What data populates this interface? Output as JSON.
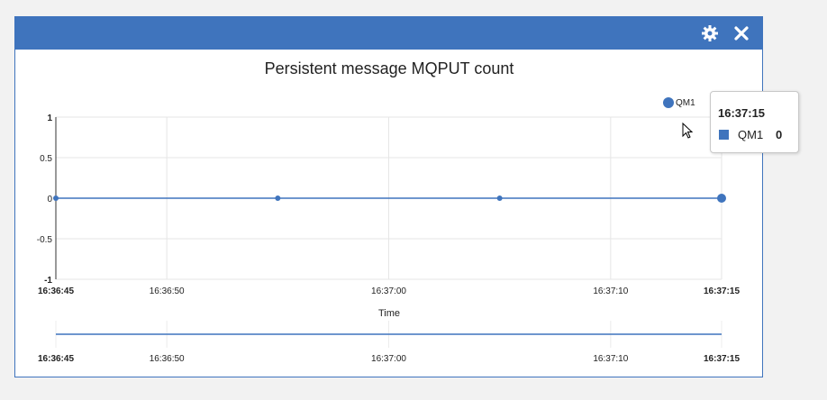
{
  "widget": {
    "settings_icon": "gear-icon",
    "close_icon": "close-icon",
    "accent_color": "#3f74bd"
  },
  "chart_data": {
    "type": "line",
    "title": "Persistent message MQPUT count",
    "xlabel": "Time",
    "ylabel": "",
    "x": [
      "16:36:45",
      "16:36:55",
      "16:37:05",
      "16:37:15"
    ],
    "series": [
      {
        "name": "QM1",
        "values": [
          0,
          0,
          0,
          0
        ],
        "color": "#3f74bd"
      }
    ],
    "ylim": [
      -1,
      1
    ],
    "y_ticks": [
      "1",
      "0.5",
      "0",
      "-0.5",
      "-1"
    ],
    "x_ticks": [
      "16:36:45",
      "16:36:50",
      "16:37:00",
      "16:37:10",
      "16:37:15"
    ],
    "x_ticks_bold": [
      true,
      false,
      false,
      false,
      true
    ],
    "grid": true,
    "legend": "top-right",
    "navigator": true
  },
  "tooltip": {
    "time": "16:37:15",
    "series": "QM1",
    "value": "0"
  }
}
